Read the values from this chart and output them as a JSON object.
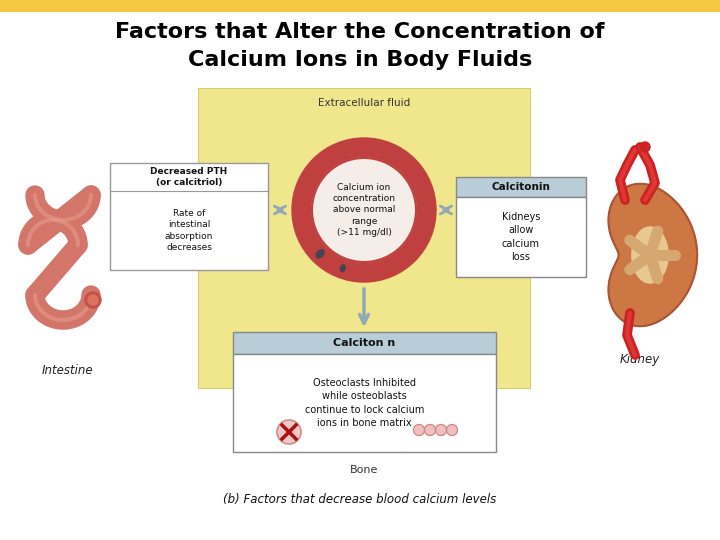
{
  "title_line1": "Factors that Alter the Concentration of",
  "title_line2": "Calcium Ions in Body Fluids",
  "title_bg_color": "#F5C842",
  "title_text_color": "#000000",
  "background_color": "#FFFFFF",
  "caption": "(b) Factors that decrease blood calcium levels",
  "yellow_bg": "#F0E68C",
  "box_bg": "#B8CDD8",
  "intestine_color": "#D4756A",
  "kidney_outer": "#CC7744",
  "kidney_inner": "#D4A870",
  "kidney_center": "#E8C890",
  "bone_color": "#E8D8A0",
  "bone_border": "#C8A870",
  "ring_outer": "#C04040",
  "ring_inner_fill": "#F5EEE8",
  "arrow_color": "#90A8B8",
  "label_intestine": "Intestine",
  "label_kidney": "Kidney",
  "label_bone": "Bone",
  "label_extracellular": "Extracellular fluid",
  "box1_title": "Decreased PTH\n(or calcitriol)",
  "box1_body": "Rate of\nintestinal\nabsorption\ndecreases",
  "box2_title": "Calciton n",
  "box2_body": "Osteoclasts Inhibited\nwhile osteoblasts\ncontinue to lock calcium\nions in bone matrix",
  "box3_title": "Calcitonin",
  "box3_body": "Kidneys\nallow\ncalcium\nloss",
  "circle_text": "Calcium ion\nconcentration\nabove normal\nrange\n(>11 mg/dl)"
}
